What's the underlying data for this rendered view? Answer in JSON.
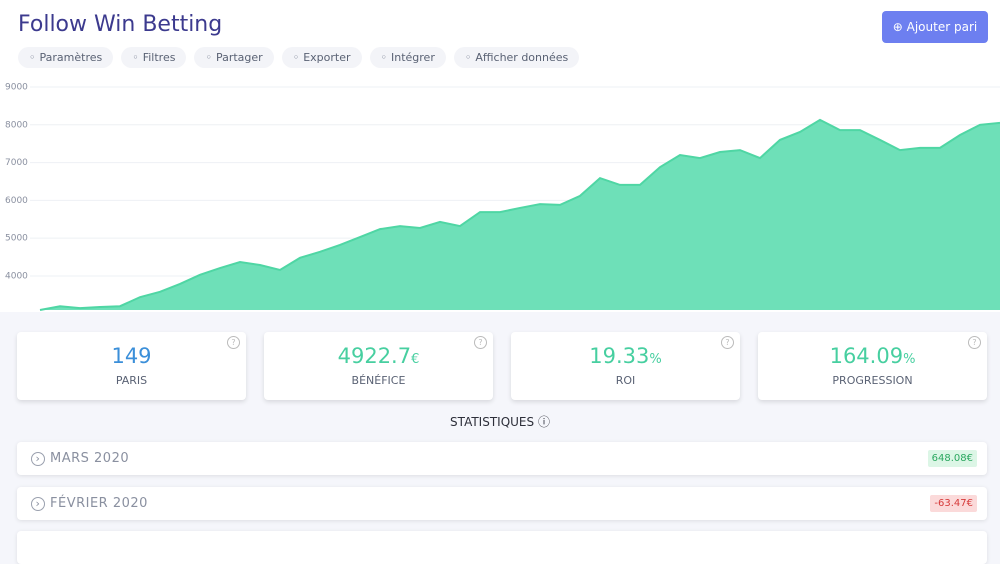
{
  "header": {
    "title": "Follow Win Betting",
    "button": "Ajouter pari"
  },
  "toolbar": [
    "Paramètres",
    "Filtres",
    "Partager",
    "Exporter",
    "Intégrer",
    "Afficher données"
  ],
  "chart_data": {
    "type": "area",
    "color": "#6ee0b8",
    "line_color": "#4fd6a4",
    "values": [
      3100,
      3200,
      3150,
      3180,
      3200,
      3440,
      3580,
      3790,
      4030,
      4210,
      4370,
      4290,
      4160,
      4480,
      4640,
      4820,
      5030,
      5240,
      5320,
      5270,
      5430,
      5320,
      5690,
      5690,
      5800,
      5900,
      5880,
      6120,
      6590,
      6410,
      6410,
      6880,
      7200,
      7120,
      7280,
      7330,
      7120,
      7600,
      7810,
      8130,
      7860,
      7860,
      7600,
      7330,
      7390,
      7390,
      7730,
      8000,
      8050
    ],
    "ylim": [
      3100,
      9000
    ],
    "yticks": [
      4000,
      5000,
      6000,
      7000,
      8000,
      9000
    ],
    "grid": true
  },
  "stats": [
    {
      "value": 149,
      "label": "PARIS"
    },
    {
      "value": 4922.7,
      "unit": "€",
      "label": "BÉNÉFICE"
    },
    {
      "value": 19.33,
      "unit": "%",
      "label": "ROI"
    },
    {
      "value": 164.09,
      "unit": "%",
      "label": "PROGRESSION"
    }
  ],
  "statistics_heading": "STATISTIQUES",
  "months": [
    {
      "label": "MARS 2020",
      "amount": "648.08€",
      "positive": true
    },
    {
      "label": "FÉVRIER 2020",
      "amount": "-63.47€",
      "positive": false
    }
  ]
}
